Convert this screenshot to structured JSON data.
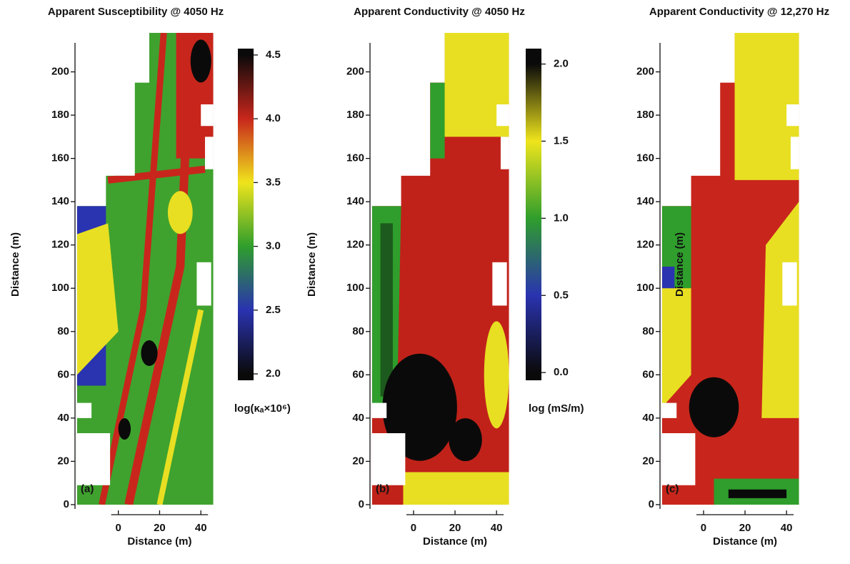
{
  "chart_data": [
    {
      "type": "heatmap",
      "title": "Apparent Susceptibility @ 4050 Hz",
      "panel_label": "(a)",
      "xlabel": "Distance (m)",
      "ylabel": "Distance (m)",
      "xlim": [
        -21,
        46.5
      ],
      "xticks": [
        0,
        20,
        40
      ],
      "ylim": [
        -2,
        220
      ],
      "yticks": [
        0,
        20,
        40,
        60,
        80,
        100,
        120,
        140,
        160,
        180,
        200
      ],
      "colorbar": {
        "label": "log(κₐ×10⁶)",
        "lim": [
          1.95,
          4.55
        ],
        "ticks": [
          {
            "value": 2,
            "label": "2.0"
          },
          2.5,
          {
            "value": 3,
            "label": "3.0"
          },
          3.5,
          {
            "value": 4,
            "label": "4.0"
          },
          4.5
        ],
        "colors": [
          "#0a0a0a",
          "#2a33b0",
          "#2f9e2c",
          "#efe41c",
          "#c8261c",
          "#0a0a0a"
        ]
      }
    },
    {
      "type": "heatmap",
      "title": "Apparent Conductivity @ 4050 Hz",
      "panel_label": "(b)",
      "xlabel": "Distance (m)",
      "ylabel": "Distance (m)",
      "xlim": [
        -21,
        46.5
      ],
      "xticks": [
        0,
        20,
        40
      ],
      "ylim": [
        -2,
        220
      ],
      "yticks": [
        0,
        20,
        40,
        60,
        80,
        100,
        120,
        140,
        160,
        180,
        200
      ],
      "colorbar": {
        "label": "log (mS/m)",
        "lim": [
          -0.05,
          2.1
        ],
        "ticks": [
          {
            "value": 0,
            "label": "0.0"
          },
          0.5,
          {
            "value": 1,
            "label": "1.0"
          },
          1.5,
          {
            "value": 2,
            "label": "2.0"
          }
        ],
        "colors": [
          "#0a0a0a",
          "#2a33b0",
          "#2f9e2c",
          "#efe41c",
          "#0a0a0a"
        ]
      }
    },
    {
      "type": "heatmap",
      "title": "Apparent Conductivity @ 12,270 Hz",
      "panel_label": "(c)",
      "xlabel": "Distance (m)",
      "ylabel": "Distance (m)",
      "xlim": [
        -21,
        46.5
      ],
      "xticks": [
        0,
        20,
        40
      ],
      "ylim": [
        -2,
        220
      ],
      "yticks": [
        0,
        20,
        40,
        60,
        80,
        100,
        120,
        140,
        160,
        180,
        200
      ]
    }
  ]
}
